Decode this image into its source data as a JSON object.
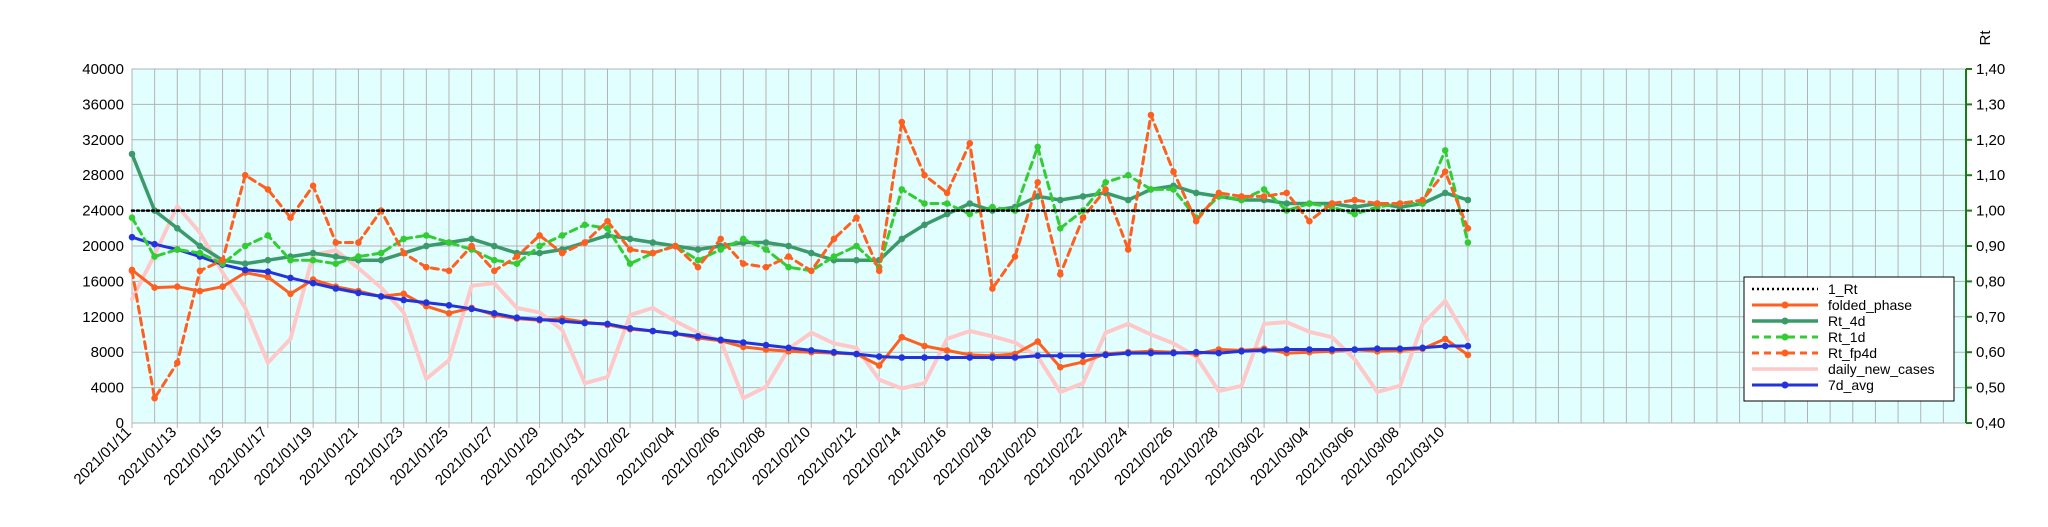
{
  "chart_data": {
    "type": "line",
    "x_dates": [
      "2021/01/11",
      "2021/01/12",
      "2021/01/13",
      "2021/01/14",
      "2021/01/15",
      "2021/01/16",
      "2021/01/17",
      "2021/01/18",
      "2021/01/19",
      "2021/01/20",
      "2021/01/21",
      "2021/01/22",
      "2021/01/23",
      "2021/01/24",
      "2021/01/25",
      "2021/01/26",
      "2021/01/27",
      "2021/01/28",
      "2021/01/29",
      "2021/01/30",
      "2021/01/31",
      "2021/02/01",
      "2021/02/02",
      "2021/02/03",
      "2021/02/04",
      "2021/02/05",
      "2021/02/06",
      "2021/02/07",
      "2021/02/08",
      "2021/02/09",
      "2021/02/10",
      "2021/02/11",
      "2021/02/12",
      "2021/02/13",
      "2021/02/14",
      "2021/02/15",
      "2021/02/16",
      "2021/02/17",
      "2021/02/18",
      "2021/02/19",
      "2021/02/20",
      "2021/02/21",
      "2021/02/22",
      "2021/02/23",
      "2021/02/24",
      "2021/02/25",
      "2021/02/26",
      "2021/02/27",
      "2021/02/28",
      "2021/03/01",
      "2021/03/02",
      "2021/03/03",
      "2021/03/04",
      "2021/03/05",
      "2021/03/06",
      "2021/03/07",
      "2021/03/08",
      "2021/03/09",
      "2021/03/10",
      "2021/03/11",
      "2021/03/12",
      "2021/03/13",
      "2021/03/14",
      "2021/03/15",
      "2021/03/16",
      "2021/03/17",
      "2021/03/18",
      "2021/03/19",
      "2021/03/20",
      "2021/03/21",
      "2021/03/22",
      "2021/03/23",
      "2021/03/24",
      "2021/03/25",
      "2021/03/26",
      "2021/03/27",
      "2021/03/28",
      "2021/03/29",
      "2021/03/30",
      "2021/03/31",
      "2021/04/01",
      "2021/04/02"
    ],
    "x_tick_labels": [
      "2021/01/11",
      "2021/01/13",
      "2021/01/15",
      "2021/01/17",
      "2021/01/19",
      "2021/01/21",
      "2021/01/23",
      "2021/01/25",
      "2021/01/27",
      "2021/01/29",
      "2021/01/31",
      "2021/02/02",
      "2021/02/04",
      "2021/02/06",
      "2021/02/08",
      "2021/02/10",
      "2021/02/12",
      "2021/02/14",
      "2021/02/16",
      "2021/02/18",
      "2021/02/20",
      "2021/02/22",
      "2021/02/24",
      "2021/02/26",
      "2021/02/28",
      "2021/03/02",
      "2021/03/04",
      "2021/03/06",
      "2021/03/08",
      "2021/03/10"
    ],
    "y_left": {
      "min": 0,
      "max": 40000,
      "step": 4000
    },
    "y_right": {
      "title": "Rt",
      "min": 0.4,
      "max": 1.4,
      "step": 0.1
    },
    "grid": true,
    "legend_position": "right",
    "series": [
      {
        "name": "1_Rt",
        "axis": "right",
        "color": "#000000",
        "style": "dotted",
        "marker": false,
        "dates": [
          "2021/01/11",
          "2021/03/11"
        ],
        "values": [
          1.0,
          1.0
        ]
      },
      {
        "name": "folded_phase",
        "axis": "left",
        "color": "#ff5f1f",
        "style": "solid",
        "marker": true,
        "dates": [
          "2021/01/11",
          "2021/01/12",
          "2021/01/13",
          "2021/01/14",
          "2021/01/15",
          "2021/01/16",
          "2021/01/17",
          "2021/01/18",
          "2021/01/19",
          "2021/01/20",
          "2021/01/21",
          "2021/01/22",
          "2021/01/23",
          "2021/01/24",
          "2021/01/25",
          "2021/01/26",
          "2021/01/27",
          "2021/01/28",
          "2021/01/29",
          "2021/01/30",
          "2021/01/31",
          "2021/02/01",
          "2021/02/02",
          "2021/02/03",
          "2021/02/04",
          "2021/02/05",
          "2021/02/06",
          "2021/02/07",
          "2021/02/08",
          "2021/02/09",
          "2021/02/10",
          "2021/02/11",
          "2021/02/12",
          "2021/02/13",
          "2021/02/14",
          "2021/02/15",
          "2021/02/16",
          "2021/02/17",
          "2021/02/18",
          "2021/02/19",
          "2021/02/20",
          "2021/02/21",
          "2021/02/22",
          "2021/02/23",
          "2021/02/24",
          "2021/02/25",
          "2021/02/26",
          "2021/02/27",
          "2021/02/28",
          "2021/03/01",
          "2021/03/02",
          "2021/03/03",
          "2021/03/04",
          "2021/03/05",
          "2021/03/06",
          "2021/03/07",
          "2021/03/08",
          "2021/03/09",
          "2021/03/10",
          "2021/03/11"
        ],
        "values": [
          17300,
          15300,
          15400,
          14900,
          15400,
          17000,
          16500,
          14600,
          16200,
          15400,
          14900,
          14300,
          14600,
          13200,
          12400,
          13000,
          12200,
          11800,
          11600,
          11800,
          11400,
          11100,
          10600,
          10400,
          10100,
          9600,
          9300,
          8600,
          8300,
          8100,
          8000,
          7900,
          7800,
          6500,
          9700,
          8700,
          8200,
          7700,
          7600,
          7800,
          9200,
          6300,
          6900,
          7800,
          8000,
          8100,
          8000,
          7800,
          8300,
          8200,
          8400,
          7900,
          8000,
          8100,
          8300,
          8100,
          8200,
          8400,
          9500,
          7700
        ]
      },
      {
        "name": "Rt_4d",
        "axis": "right",
        "color": "#3a9a6a",
        "style": "solid",
        "marker": true,
        "dates": [
          "2021/01/11",
          "2021/01/12",
          "2021/01/13",
          "2021/01/14",
          "2021/01/15",
          "2021/01/16",
          "2021/01/17",
          "2021/01/18",
          "2021/01/19",
          "2021/01/20",
          "2021/01/21",
          "2021/01/22",
          "2021/01/23",
          "2021/01/24",
          "2021/01/25",
          "2021/01/26",
          "2021/01/27",
          "2021/01/28",
          "2021/01/29",
          "2021/01/30",
          "2021/01/31",
          "2021/02/01",
          "2021/02/02",
          "2021/02/03",
          "2021/02/04",
          "2021/02/05",
          "2021/02/06",
          "2021/02/07",
          "2021/02/08",
          "2021/02/09",
          "2021/02/10",
          "2021/02/11",
          "2021/02/12",
          "2021/02/13",
          "2021/02/14",
          "2021/02/15",
          "2021/02/16",
          "2021/02/17",
          "2021/02/18",
          "2021/02/19",
          "2021/02/20",
          "2021/02/21",
          "2021/02/22",
          "2021/02/23",
          "2021/02/24",
          "2021/02/25",
          "2021/02/26",
          "2021/02/27",
          "2021/02/28",
          "2021/03/01",
          "2021/03/02",
          "2021/03/03",
          "2021/03/04",
          "2021/03/05",
          "2021/03/06",
          "2021/03/07",
          "2021/03/08",
          "2021/03/09",
          "2021/03/10",
          "2021/03/11"
        ],
        "values": [
          1.16,
          1.0,
          0.95,
          0.9,
          0.86,
          0.85,
          0.86,
          0.87,
          0.88,
          0.87,
          0.86,
          0.86,
          0.88,
          0.9,
          0.91,
          0.92,
          0.9,
          0.88,
          0.88,
          0.89,
          0.91,
          0.93,
          0.92,
          0.91,
          0.9,
          0.89,
          0.9,
          0.91,
          0.91,
          0.9,
          0.88,
          0.86,
          0.86,
          0.86,
          0.92,
          0.96,
          0.99,
          1.02,
          1.0,
          1.01,
          1.04,
          1.03,
          1.04,
          1.05,
          1.03,
          1.06,
          1.07,
          1.05,
          1.04,
          1.03,
          1.03,
          1.02,
          1.02,
          1.02,
          1.01,
          1.02,
          1.01,
          1.02,
          1.05,
          1.03
        ]
      },
      {
        "name": "Rt_1d",
        "axis": "right",
        "color": "#33cc33",
        "style": "dashed",
        "marker": true,
        "dates": [
          "2021/01/11",
          "2021/01/12",
          "2021/01/13",
          "2021/01/14",
          "2021/01/15",
          "2021/01/16",
          "2021/01/17",
          "2021/01/18",
          "2021/01/19",
          "2021/01/20",
          "2021/01/21",
          "2021/01/22",
          "2021/01/23",
          "2021/01/24",
          "2021/01/25",
          "2021/01/26",
          "2021/01/27",
          "2021/01/28",
          "2021/01/29",
          "2021/01/30",
          "2021/01/31",
          "2021/02/01",
          "2021/02/02",
          "2021/02/03",
          "2021/02/04",
          "2021/02/05",
          "2021/02/06",
          "2021/02/07",
          "2021/02/08",
          "2021/02/09",
          "2021/02/10",
          "2021/02/11",
          "2021/02/12",
          "2021/02/13",
          "2021/02/14",
          "2021/02/15",
          "2021/02/16",
          "2021/02/17",
          "2021/02/18",
          "2021/02/19",
          "2021/02/20",
          "2021/02/21",
          "2021/02/22",
          "2021/02/23",
          "2021/02/24",
          "2021/02/25",
          "2021/02/26",
          "2021/02/27",
          "2021/02/28",
          "2021/03/01",
          "2021/03/02",
          "2021/03/03",
          "2021/03/04",
          "2021/03/05",
          "2021/03/06",
          "2021/03/07",
          "2021/03/08",
          "2021/03/09",
          "2021/03/10",
          "2021/03/11"
        ],
        "values": [
          0.98,
          0.87,
          0.89,
          0.88,
          0.85,
          0.9,
          0.93,
          0.86,
          0.86,
          0.85,
          0.87,
          0.88,
          0.92,
          0.93,
          0.91,
          0.89,
          0.86,
          0.85,
          0.9,
          0.93,
          0.96,
          0.95,
          0.85,
          0.88,
          0.9,
          0.86,
          0.89,
          0.92,
          0.89,
          0.84,
          0.83,
          0.87,
          0.9,
          0.84,
          1.06,
          1.02,
          1.02,
          0.99,
          1.01,
          1.0,
          1.18,
          0.95,
          1.0,
          1.08,
          1.1,
          1.06,
          1.06,
          0.98,
          1.04,
          1.03,
          1.06,
          1.0,
          1.02,
          1.01,
          0.99,
          1.01,
          1.02,
          1.02,
          1.17,
          0.91
        ]
      },
      {
        "name": "Rt_fp4d",
        "axis": "right",
        "color": "#ff5f1f",
        "style": "dashed",
        "marker": true,
        "dates": [
          "2021/01/11",
          "2021/01/12",
          "2021/01/13",
          "2021/01/14",
          "2021/01/15",
          "2021/01/16",
          "2021/01/17",
          "2021/01/18",
          "2021/01/19",
          "2021/01/20",
          "2021/01/21",
          "2021/01/22",
          "2021/01/23",
          "2021/01/24",
          "2021/01/25",
          "2021/01/26",
          "2021/01/27",
          "2021/01/28",
          "2021/01/29",
          "2021/01/30",
          "2021/01/31",
          "2021/02/01",
          "2021/02/02",
          "2021/02/03",
          "2021/02/04",
          "2021/02/05",
          "2021/02/06",
          "2021/02/07",
          "2021/02/08",
          "2021/02/09",
          "2021/02/10",
          "2021/02/11",
          "2021/02/12",
          "2021/02/13",
          "2021/02/14",
          "2021/02/15",
          "2021/02/16",
          "2021/02/17",
          "2021/02/18",
          "2021/02/19",
          "2021/02/20",
          "2021/02/21",
          "2021/02/22",
          "2021/02/23",
          "2021/02/24",
          "2021/02/25",
          "2021/02/26",
          "2021/02/27",
          "2021/02/28",
          "2021/03/01",
          "2021/03/02",
          "2021/03/03",
          "2021/03/04",
          "2021/03/05",
          "2021/03/06",
          "2021/03/07",
          "2021/03/08",
          "2021/03/09",
          "2021/03/10",
          "2021/03/11"
        ],
        "values": [
          0.83,
          0.47,
          0.57,
          0.83,
          0.86,
          1.1,
          1.06,
          0.98,
          1.07,
          0.91,
          0.91,
          1.0,
          0.88,
          0.84,
          0.83,
          0.9,
          0.83,
          0.87,
          0.93,
          0.88,
          0.91,
          0.97,
          0.89,
          0.88,
          0.9,
          0.84,
          0.92,
          0.85,
          0.84,
          0.87,
          0.83,
          0.92,
          0.98,
          0.83,
          1.25,
          1.1,
          1.05,
          1.19,
          0.78,
          0.87,
          1.08,
          0.82,
          0.98,
          1.06,
          0.89,
          1.27,
          1.11,
          0.97,
          1.05,
          1.04,
          1.04,
          1.05,
          0.97,
          1.02,
          1.03,
          1.02,
          1.02,
          1.03,
          1.11,
          0.95
        ]
      },
      {
        "name": "daily_new_cases",
        "axis": "left",
        "color": "#ffc8c8",
        "style": "solid",
        "marker": false,
        "dates": [
          "2021/01/11",
          "2021/01/12",
          "2021/01/13",
          "2021/01/14",
          "2021/01/15",
          "2021/01/16",
          "2021/01/17",
          "2021/01/18",
          "2021/01/19",
          "2021/01/20",
          "2021/01/21",
          "2021/01/22",
          "2021/01/23",
          "2021/01/24",
          "2021/01/25",
          "2021/01/26",
          "2021/01/27",
          "2021/01/28",
          "2021/01/29",
          "2021/01/30",
          "2021/01/31",
          "2021/02/01",
          "2021/02/02",
          "2021/02/03",
          "2021/02/04",
          "2021/02/05",
          "2021/02/06",
          "2021/02/07",
          "2021/02/08",
          "2021/02/09",
          "2021/02/10",
          "2021/02/11",
          "2021/02/12",
          "2021/02/13",
          "2021/02/14",
          "2021/02/15",
          "2021/02/16",
          "2021/02/17",
          "2021/02/18",
          "2021/02/19",
          "2021/02/20",
          "2021/02/21",
          "2021/02/22",
          "2021/02/23",
          "2021/02/24",
          "2021/02/25",
          "2021/02/26",
          "2021/02/27",
          "2021/02/28",
          "2021/03/01",
          "2021/03/02",
          "2021/03/03",
          "2021/03/04",
          "2021/03/05",
          "2021/03/06",
          "2021/03/07",
          "2021/03/08",
          "2021/03/09",
          "2021/03/10",
          "2021/03/11"
        ],
        "values": [
          14000,
          19000,
          24500,
          21500,
          17000,
          13000,
          6800,
          9500,
          19000,
          19500,
          17500,
          15300,
          12500,
          5000,
          7100,
          15500,
          15800,
          13000,
          12500,
          10500,
          4500,
          5200,
          12200,
          13000,
          11500,
          10200,
          9300,
          2800,
          4100,
          8400,
          10200,
          9000,
          8500,
          4900,
          3900,
          4500,
          9500,
          10400,
          9800,
          9100,
          7500,
          3500,
          4500,
          10200,
          11200,
          10000,
          9000,
          7500,
          3600,
          4200,
          11200,
          11400,
          10300,
          9700,
          7200,
          3500,
          4200,
          11200,
          13800,
          9400
        ]
      },
      {
        "name": "7d_avg",
        "axis": "left",
        "color": "#2233dd",
        "style": "solid",
        "marker": true,
        "dates": [
          "2021/01/11",
          "2021/01/12",
          "2021/01/13",
          "2021/01/14",
          "2021/01/15",
          "2021/01/16",
          "2021/01/17",
          "2021/01/18",
          "2021/01/19",
          "2021/01/20",
          "2021/01/21",
          "2021/01/22",
          "2021/01/23",
          "2021/01/24",
          "2021/01/25",
          "2021/01/26",
          "2021/01/27",
          "2021/01/28",
          "2021/01/29",
          "2021/01/30",
          "2021/01/31",
          "2021/02/01",
          "2021/02/02",
          "2021/02/03",
          "2021/02/04",
          "2021/02/05",
          "2021/02/06",
          "2021/02/07",
          "2021/02/08",
          "2021/02/09",
          "2021/02/10",
          "2021/02/11",
          "2021/02/12",
          "2021/02/13",
          "2021/02/14",
          "2021/02/15",
          "2021/02/16",
          "2021/02/17",
          "2021/02/18",
          "2021/02/19",
          "2021/02/20",
          "2021/02/21",
          "2021/02/22",
          "2021/02/23",
          "2021/02/24",
          "2021/02/25",
          "2021/02/26",
          "2021/02/27",
          "2021/02/28",
          "2021/03/01",
          "2021/03/02",
          "2021/03/03",
          "2021/03/04",
          "2021/03/05",
          "2021/03/06",
          "2021/03/07",
          "2021/03/08",
          "2021/03/09",
          "2021/03/10",
          "2021/03/11"
        ],
        "values": [
          21000,
          20200,
          19600,
          18800,
          17900,
          17300,
          17100,
          16400,
          15800,
          15200,
          14700,
          14300,
          13900,
          13600,
          13300,
          12900,
          12400,
          11900,
          11700,
          11500,
          11300,
          11200,
          10700,
          10400,
          10100,
          9800,
          9400,
          9100,
          8800,
          8500,
          8200,
          8000,
          7800,
          7500,
          7400,
          7400,
          7400,
          7400,
          7400,
          7400,
          7600,
          7600,
          7600,
          7700,
          7900,
          7900,
          7900,
          8000,
          7900,
          8100,
          8200,
          8300,
          8300,
          8300,
          8300,
          8400,
          8400,
          8500,
          8700,
          8700
        ]
      }
    ]
  }
}
